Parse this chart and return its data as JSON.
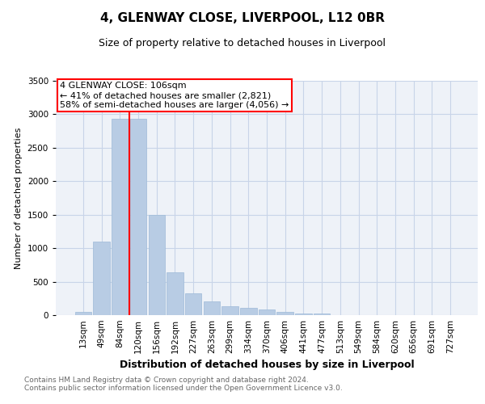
{
  "title": "4, GLENWAY CLOSE, LIVERPOOL, L12 0BR",
  "subtitle": "Size of property relative to detached houses in Liverpool",
  "xlabel": "Distribution of detached houses by size in Liverpool",
  "ylabel": "Number of detached properties",
  "categories": [
    "13sqm",
    "49sqm",
    "84sqm",
    "120sqm",
    "156sqm",
    "192sqm",
    "227sqm",
    "263sqm",
    "299sqm",
    "334sqm",
    "370sqm",
    "406sqm",
    "441sqm",
    "477sqm",
    "513sqm",
    "549sqm",
    "584sqm",
    "620sqm",
    "656sqm",
    "691sqm",
    "727sqm"
  ],
  "values": [
    50,
    1100,
    2930,
    2930,
    1500,
    640,
    330,
    210,
    130,
    110,
    80,
    50,
    30,
    20,
    5,
    3,
    2,
    2,
    0,
    0,
    0
  ],
  "bar_color": "#b8cce4",
  "bar_edge_color": "#9dbad8",
  "annotation_text_line1": "4 GLENWAY CLOSE: 106sqm",
  "annotation_text_line2": "← 41% of detached houses are smaller (2,821)",
  "annotation_text_line3": "58% of semi-detached houses are larger (4,056) →",
  "annotation_box_color": "white",
  "annotation_box_edge_color": "red",
  "vline_color": "red",
  "ylim": [
    0,
    3500
  ],
  "yticks": [
    0,
    500,
    1000,
    1500,
    2000,
    2500,
    3000,
    3500
  ],
  "grid_color": "#c8d4e8",
  "bg_color": "#eef2f8",
  "footnote_line1": "Contains HM Land Registry data © Crown copyright and database right 2024.",
  "footnote_line2": "Contains public sector information licensed under the Open Government Licence v3.0.",
  "title_fontsize": 11,
  "subtitle_fontsize": 9,
  "ylabel_fontsize": 8,
  "xlabel_fontsize": 9,
  "tick_fontsize": 7.5,
  "footnote_fontsize": 6.5,
  "annotation_fontsize": 8
}
